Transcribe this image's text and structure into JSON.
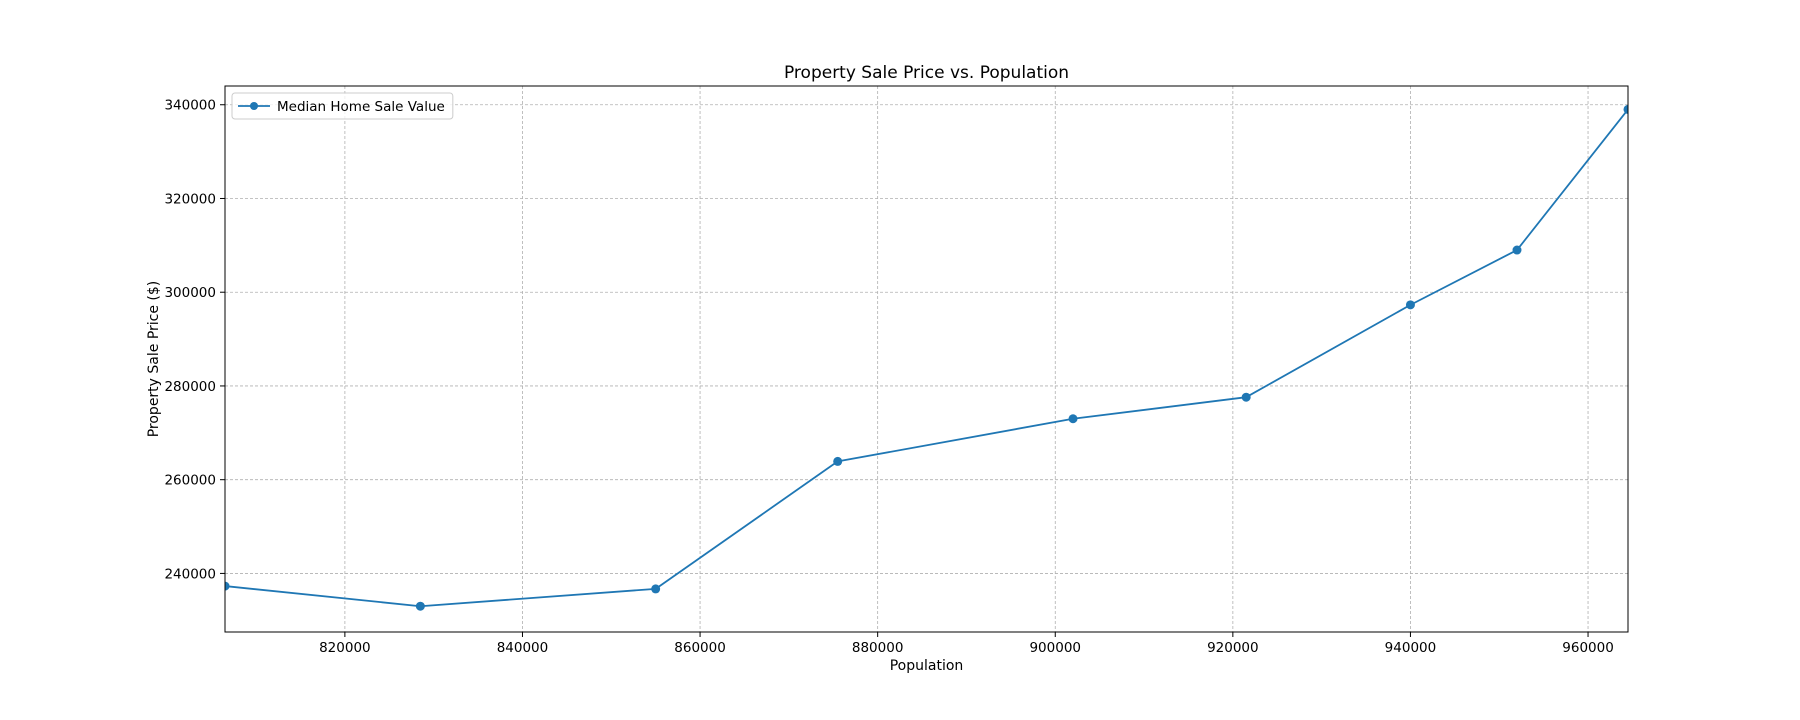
{
  "chart_data": {
    "type": "line",
    "title": "Property Sale Price vs. Population",
    "xlabel": "Population",
    "ylabel": "Property Sale Price ($)",
    "xlim": [
      806500,
      964500
    ],
    "ylim": [
      227500,
      344000
    ],
    "xticks": [
      820000,
      840000,
      860000,
      880000,
      900000,
      920000,
      940000,
      960000
    ],
    "yticks": [
      240000,
      260000,
      280000,
      300000,
      320000,
      340000
    ],
    "grid": true,
    "legend_position": "top-left",
    "series": [
      {
        "name": "Median Home Sale Value",
        "color": "#1f77b4",
        "marker": "circle",
        "x": [
          806500,
          828500,
          855000,
          875500,
          902000,
          921500,
          940000,
          952000,
          964500
        ],
        "y": [
          237300,
          233000,
          236700,
          263900,
          273000,
          277600,
          297300,
          309000,
          339000
        ]
      }
    ]
  }
}
